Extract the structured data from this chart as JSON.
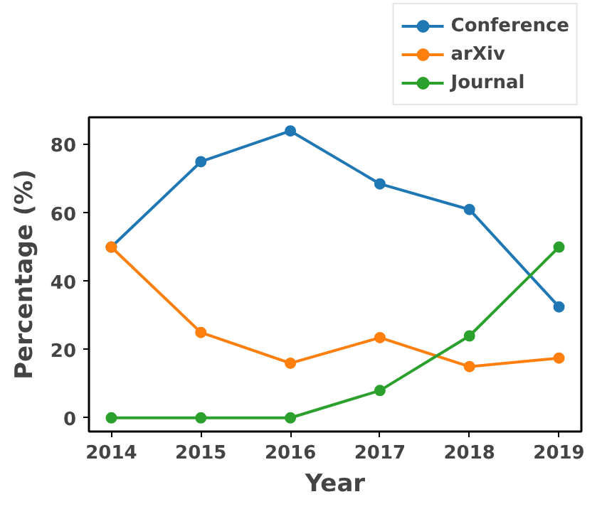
{
  "chart_data": {
    "type": "line",
    "xlabel": "Year",
    "ylabel": "Percentage (%)",
    "x": [
      2014,
      2015,
      2016,
      2017,
      2018,
      2019
    ],
    "series": [
      {
        "name": "Conference",
        "color": "#1f77b4",
        "values": [
          50,
          75,
          84,
          68.5,
          61,
          32.5
        ]
      },
      {
        "name": "arXiv",
        "color": "#ff7f0e",
        "values": [
          50,
          25,
          16,
          23.5,
          15,
          17.5
        ]
      },
      {
        "name": "Journal",
        "color": "#2ca02c",
        "values": [
          0,
          0,
          0,
          8,
          24,
          50
        ]
      }
    ],
    "xlim": [
      2013.75,
      2019.25
    ],
    "ylim": [
      -4,
      88
    ],
    "xticks": [
      2014,
      2015,
      2016,
      2017,
      2018,
      2019
    ],
    "yticks": [
      0,
      20,
      40,
      60,
      80
    ],
    "marker": "circle",
    "line_style": "solid",
    "legend": "top right",
    "grid": false
  }
}
